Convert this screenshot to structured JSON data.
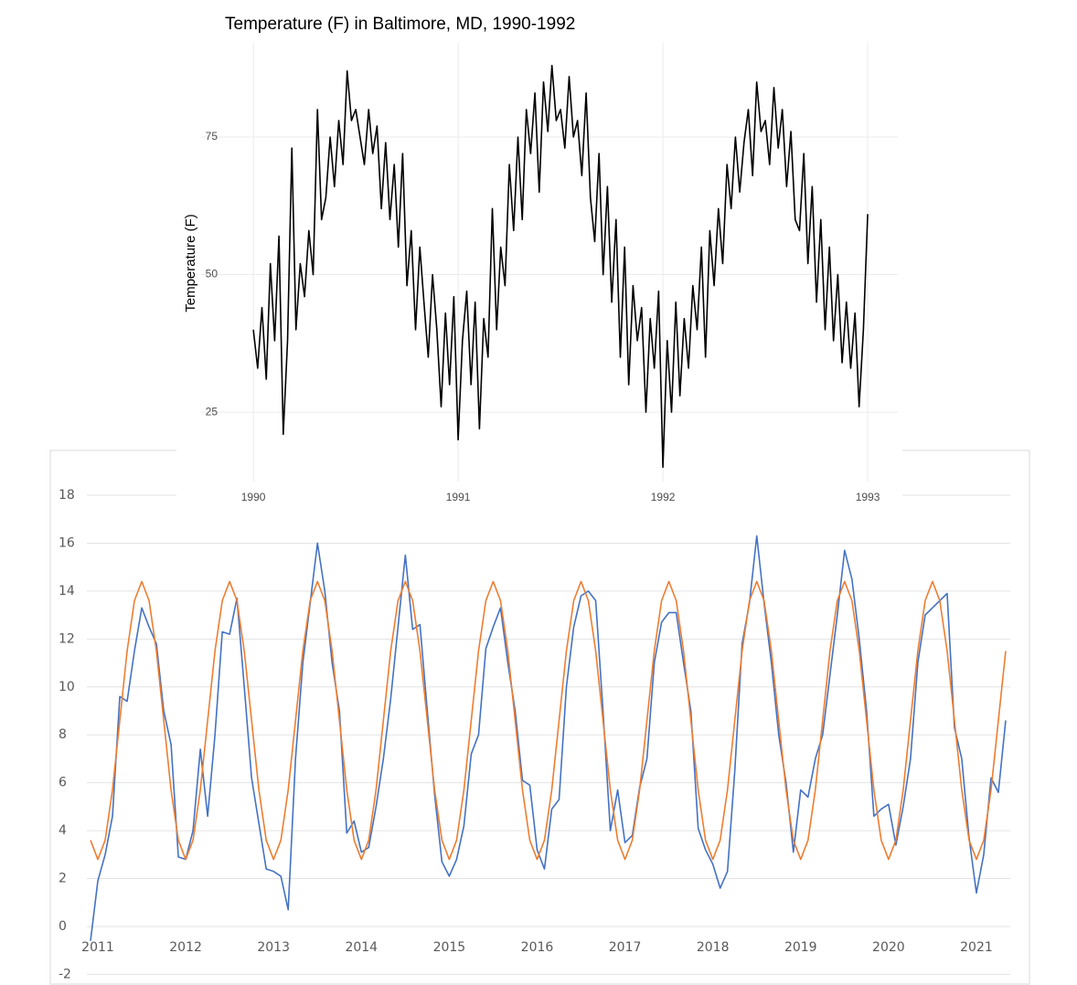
{
  "chart_data": [
    {
      "type": "line",
      "title": "Temperature (F) in Baltimore, MD, 1990-1992",
      "y_label": "Temperature (F)",
      "xlim": [
        1989.745,
        1993.147
      ],
      "xticks": [
        1990,
        1991,
        1992,
        1993
      ],
      "ylim": [
        12.4,
        92.1
      ],
      "yticks": [
        25,
        50,
        75
      ],
      "grid": true,
      "x": [
        1990,
        1990.021,
        1990.042,
        1990.063,
        1990.083,
        1990.104,
        1990.125,
        1990.146,
        1990.167,
        1990.188,
        1990.208,
        1990.229,
        1990.25,
        1990.271,
        1990.292,
        1990.313,
        1990.333,
        1990.354,
        1990.375,
        1990.396,
        1990.417,
        1990.438,
        1990.458,
        1990.479,
        1990.5,
        1990.521,
        1990.542,
        1990.563,
        1990.583,
        1990.604,
        1990.625,
        1990.646,
        1990.667,
        1990.688,
        1990.708,
        1990.729,
        1990.75,
        1990.771,
        1990.792,
        1990.813,
        1990.833,
        1990.854,
        1990.875,
        1990.896,
        1990.917,
        1990.938,
        1990.958,
        1990.979,
        1991,
        1991.021,
        1991.042,
        1991.063,
        1991.083,
        1991.104,
        1991.125,
        1991.146,
        1991.167,
        1991.188,
        1991.208,
        1991.229,
        1991.25,
        1991.271,
        1991.292,
        1991.313,
        1991.333,
        1991.354,
        1991.375,
        1991.396,
        1991.417,
        1991.438,
        1991.458,
        1991.479,
        1991.5,
        1991.521,
        1991.542,
        1991.563,
        1991.583,
        1991.604,
        1991.625,
        1991.646,
        1991.667,
        1991.688,
        1991.708,
        1991.729,
        1991.75,
        1991.771,
        1991.792,
        1991.813,
        1991.833,
        1991.854,
        1991.875,
        1991.896,
        1991.917,
        1991.938,
        1991.958,
        1991.979,
        1992,
        1992.021,
        1992.042,
        1992.063,
        1992.083,
        1992.104,
        1992.125,
        1992.146,
        1992.167,
        1992.188,
        1992.208,
        1992.229,
        1992.25,
        1992.271,
        1992.292,
        1992.313,
        1992.333,
        1992.354,
        1992.375,
        1992.396,
        1992.417,
        1992.438,
        1992.458,
        1992.479,
        1992.5,
        1992.521,
        1992.542,
        1992.563,
        1992.583,
        1992.604,
        1992.625,
        1992.646,
        1992.667,
        1992.688,
        1992.708,
        1992.729,
        1992.75,
        1992.771,
        1992.792,
        1992.813,
        1992.833,
        1992.854,
        1992.875,
        1992.896,
        1992.917,
        1992.938,
        1992.958,
        1992.979,
        1993
      ],
      "series": [
        {
          "color": "#000000",
          "values": [
            40,
            33,
            44,
            31,
            52,
            38,
            57,
            21,
            38,
            73,
            40,
            52,
            46,
            58,
            50,
            80,
            60,
            64,
            75,
            66,
            78,
            70,
            87,
            78,
            80,
            75,
            70,
            80,
            72,
            77,
            62,
            74,
            60,
            70,
            55,
            72,
            48,
            58,
            40,
            55,
            45,
            35,
            50,
            40,
            26,
            43,
            30,
            46,
            20,
            38,
            47,
            30,
            45,
            22,
            42,
            35,
            62,
            40,
            55,
            48,
            70,
            58,
            75,
            60,
            80,
            72,
            83,
            65,
            85,
            76,
            88,
            78,
            80,
            73,
            86,
            75,
            78,
            68,
            83,
            64,
            56,
            72,
            50,
            66,
            45,
            60,
            35,
            55,
            30,
            48,
            38,
            44,
            25,
            42,
            33,
            47,
            15,
            38,
            25,
            45,
            28,
            42,
            33,
            48,
            40,
            55,
            35,
            58,
            48,
            62,
            52,
            70,
            62,
            75,
            65,
            74,
            80,
            68,
            85,
            76,
            78,
            70,
            84,
            73,
            80,
            66,
            76,
            60,
            58,
            72,
            52,
            66,
            45,
            60,
            40,
            55,
            38,
            50,
            34,
            45,
            33,
            43,
            26,
            40,
            61
          ]
        }
      ]
    },
    {
      "type": "line",
      "ylim": [
        -2,
        18
      ],
      "yticks": [
        -2,
        0,
        2,
        4,
        6,
        8,
        10,
        12,
        14,
        16,
        18
      ],
      "grid": true,
      "categories": [
        "2011",
        null,
        null,
        null,
        null,
        null,
        null,
        null,
        null,
        null,
        null,
        null,
        "2012",
        null,
        null,
        null,
        null,
        null,
        null,
        null,
        null,
        null,
        null,
        null,
        "2013",
        null,
        null,
        null,
        null,
        null,
        null,
        null,
        null,
        null,
        null,
        null,
        "2014",
        null,
        null,
        null,
        null,
        null,
        null,
        null,
        null,
        null,
        null,
        null,
        "2015",
        null,
        null,
        null,
        null,
        null,
        null,
        null,
        null,
        null,
        null,
        null,
        "2016",
        null,
        null,
        null,
        null,
        null,
        null,
        null,
        null,
        null,
        null,
        null,
        "2017",
        null,
        null,
        null,
        null,
        null,
        null,
        null,
        null,
        null,
        null,
        null,
        "2018",
        null,
        null,
        null,
        null,
        null,
        null,
        null,
        null,
        null,
        null,
        null,
        "2019",
        null,
        null,
        null,
        null,
        null,
        null,
        null,
        null,
        null,
        null,
        null,
        "2020",
        null,
        null,
        null,
        null,
        null,
        null,
        null,
        null,
        null,
        null,
        null,
        "2021",
        null,
        null,
        null,
        null,
        null
      ],
      "series": [
        {
          "color": "#4472c4",
          "values": [
            -0.6,
            1.9,
            3.0,
            4.6,
            9.6,
            9.4,
            11.5,
            13.3,
            12.5,
            11.8,
            9.0,
            7.6,
            2.9,
            2.8,
            4.0,
            7.4,
            4.6,
            8.0,
            12.3,
            12.2,
            13.7,
            10.0,
            6.2,
            4.3,
            2.4,
            2.3,
            2.1,
            0.7,
            7.0,
            11.0,
            13.5,
            16.0,
            14.0,
            11.0,
            9.0,
            3.9,
            4.4,
            3.1,
            3.3,
            5.0,
            7.0,
            9.5,
            12.5,
            15.5,
            12.4,
            12.6,
            9.0,
            5.5,
            2.7,
            2.1,
            2.8,
            4.2,
            7.2,
            8.0,
            11.6,
            12.5,
            13.3,
            11.0,
            9.0,
            6.1,
            5.9,
            3.2,
            2.4,
            4.9,
            5.3,
            10.0,
            12.5,
            13.8,
            14.0,
            13.6,
            9.0,
            4.0,
            5.7,
            3.5,
            3.8,
            5.8,
            7.0,
            11.0,
            12.7,
            13.1,
            13.1,
            11.0,
            9.0,
            4.1,
            3.2,
            2.6,
            1.6,
            2.3,
            6.5,
            11.8,
            13.5,
            16.3,
            13.5,
            11.0,
            8.0,
            6.0,
            3.1,
            5.7,
            5.4,
            7.0,
            8.0,
            10.5,
            13.0,
            15.7,
            14.5,
            12.0,
            9.0,
            4.6,
            4.9,
            5.1,
            3.4,
            5.0,
            7.0,
            11.0,
            13.0,
            13.3,
            13.6,
            13.9,
            8.3,
            7.0,
            3.7,
            1.4,
            3.0,
            6.2,
            5.6,
            8.6
          ]
        },
        {
          "color": "#ed7d31",
          "values": [
            3.6,
            2.8,
            3.6,
            5.7,
            8.6,
            11.5,
            13.6,
            14.4,
            13.6,
            11.5,
            8.6,
            5.7,
            3.6,
            2.8,
            3.6,
            5.7,
            8.6,
            11.5,
            13.6,
            14.4,
            13.6,
            11.5,
            8.6,
            5.7,
            3.6,
            2.8,
            3.6,
            5.7,
            8.6,
            11.5,
            13.6,
            14.4,
            13.6,
            11.5,
            8.6,
            5.7,
            3.6,
            2.8,
            3.6,
            5.7,
            8.6,
            11.5,
            13.6,
            14.4,
            13.6,
            11.5,
            8.6,
            5.7,
            3.6,
            2.8,
            3.6,
            5.7,
            8.6,
            11.5,
            13.6,
            14.4,
            13.6,
            11.5,
            8.6,
            5.7,
            3.6,
            2.8,
            3.6,
            5.7,
            8.6,
            11.5,
            13.6,
            14.4,
            13.6,
            11.5,
            8.6,
            5.7,
            3.6,
            2.8,
            3.6,
            5.7,
            8.6,
            11.5,
            13.6,
            14.4,
            13.6,
            11.5,
            8.6,
            5.7,
            3.6,
            2.8,
            3.6,
            5.7,
            8.6,
            11.5,
            13.6,
            14.4,
            13.6,
            11.5,
            8.6,
            5.7,
            3.6,
            2.8,
            3.6,
            5.7,
            8.6,
            11.5,
            13.6,
            14.4,
            13.6,
            11.5,
            8.6,
            5.7,
            3.6,
            2.8,
            3.6,
            5.7,
            8.6,
            11.5,
            13.6,
            14.4,
            13.6,
            11.5,
            8.6,
            5.7,
            3.6,
            2.8,
            3.6,
            5.7,
            8.6,
            11.5
          ]
        }
      ]
    }
  ]
}
